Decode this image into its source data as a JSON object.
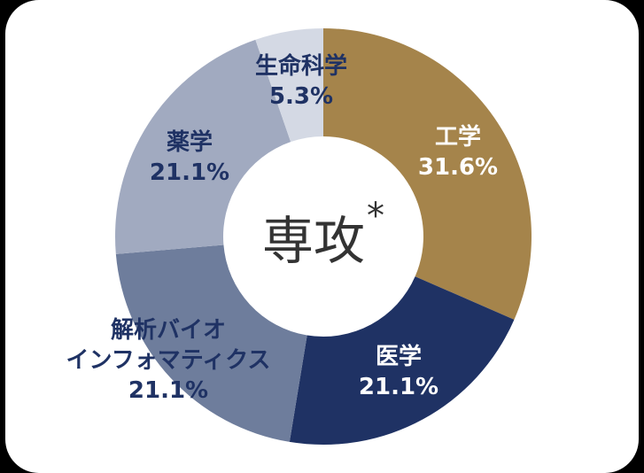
{
  "chart_data": {
    "type": "pie",
    "variant": "donut",
    "title": "専攻*",
    "categories": [
      "工学",
      "医学",
      "解析バイオインフォマティクス",
      "薬学",
      "生命科学"
    ],
    "values": [
      31.6,
      21.1,
      21.1,
      21.1,
      5.3
    ],
    "unit": "%",
    "colors": [
      "#a5844b",
      "#1f3264",
      "#6e7d9c",
      "#a1aac0",
      "#d4d9e4"
    ],
    "start_angle": "top (12 o'clock), clockwise",
    "legend": "none (labels on slices)"
  },
  "center": {
    "title": "専攻",
    "marker": "*"
  },
  "labels": [
    {
      "name": "工学",
      "value": "31.6%",
      "color": "#ffffff"
    },
    {
      "name": "医学",
      "value": "21.1%",
      "color": "#ffffff"
    },
    {
      "name_line1": "解析バイオ",
      "name_line2": "インフォマティクス",
      "value": "21.1%",
      "color": "#1f3264"
    },
    {
      "name": "薬学",
      "value": "21.1%",
      "color": "#1f3264"
    },
    {
      "name": "生命科学",
      "value": "5.3%",
      "color": "#1f3264"
    }
  ]
}
